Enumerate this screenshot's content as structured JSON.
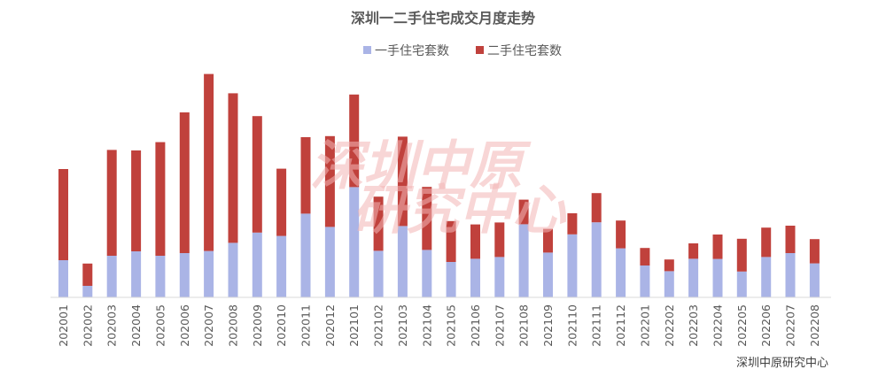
{
  "chart_data": {
    "type": "bar",
    "stacked": true,
    "title": "深圳一二手住宅成交月度走势",
    "source": "深圳中原研究中心",
    "watermark": [
      "深圳中原",
      "研究中心"
    ],
    "legend_position": "top-center",
    "grid": false,
    "categories": [
      "202001",
      "202002",
      "202003",
      "202004",
      "202005",
      "202006",
      "202007",
      "202008",
      "202009",
      "202010",
      "202011",
      "202012",
      "202101",
      "202102",
      "202103",
      "202104",
      "202105",
      "202106",
      "202107",
      "202108",
      "202109",
      "202110",
      "202111",
      "202112",
      "202201",
      "202202",
      "202203",
      "202204",
      "202205",
      "202206",
      "202207",
      "202208"
    ],
    "series": [
      {
        "name": "一手住宅套数",
        "color": "#aab4e6",
        "values": [
          2100,
          650,
          2350,
          2600,
          2350,
          2500,
          2620,
          3080,
          3660,
          3470,
          4730,
          3980,
          6230,
          2630,
          4030,
          2680,
          2000,
          2180,
          2280,
          4130,
          2530,
          3560,
          4240,
          2770,
          1800,
          1480,
          2180,
          2170,
          1460,
          2280,
          2500,
          1920
        ]
      },
      {
        "name": "二手住宅套数",
        "color": "#c0413c",
        "values": [
          5150,
          1260,
          5980,
          5700,
          6420,
          7950,
          10000,
          8450,
          6580,
          3800,
          4320,
          5130,
          5230,
          3060,
          5050,
          3560,
          2310,
          1940,
          1950,
          1390,
          1340,
          1190,
          1650,
          1570,
          990,
          660,
          870,
          1380,
          1850,
          1660,
          1550,
          1370
        ]
      }
    ],
    "ylim": [
      0,
      13000
    ]
  }
}
